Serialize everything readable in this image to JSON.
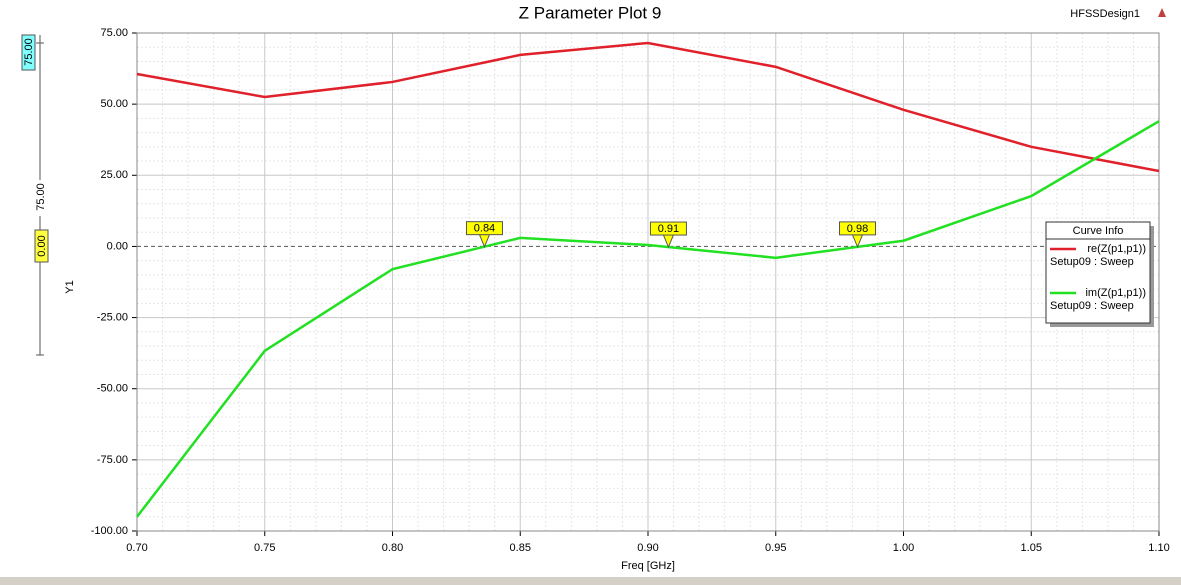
{
  "chart_data": {
    "type": "line",
    "title": "Z Parameter Plot 9",
    "design": "HFSSDesign1",
    "xlabel": "Freq [GHz]",
    "ylabel": "Y1",
    "x": [
      0.7,
      0.75,
      0.8,
      0.85,
      0.9,
      0.95,
      1.0,
      1.05,
      1.1
    ],
    "series": [
      {
        "name": "re(Z(p1,p1))",
        "solution": "Setup09 : Sweep",
        "color": "#e0202a",
        "values": [
          60.6,
          52.5,
          57.8,
          67.3,
          71.5,
          63.1,
          48,
          35,
          26.5
        ]
      },
      {
        "name": "im(Z(p1,p1))",
        "solution": "Setup09 : Sweep",
        "color": "#22e022",
        "values": [
          -95,
          -36.7,
          -8,
          3,
          0.5,
          -4,
          2,
          17.7,
          44
        ]
      }
    ],
    "xlim": [
      0.7,
      1.1
    ],
    "ylim": [
      -100,
      75
    ],
    "xticks": [
      {
        "value": 0.7,
        "label": "0.70"
      },
      0.75,
      {
        "value": 0.8,
        "label": "0.80"
      },
      0.85,
      {
        "value": 0.9,
        "label": "0.90"
      },
      0.95,
      {
        "value": 1.0,
        "label": "1.00"
      },
      1.05,
      {
        "value": 1.1,
        "label": "1.10"
      }
    ],
    "yticks": [
      {
        "value": 75,
        "label": "75.00"
      },
      {
        "value": 50,
        "label": "50.00"
      },
      {
        "value": 25,
        "label": "25.00"
      },
      {
        "value": 0,
        "label": "0.00"
      },
      {
        "value": -25,
        "label": "-25.00"
      },
      {
        "value": -50,
        "label": "-50.00"
      },
      {
        "value": -75,
        "label": "-75.00"
      },
      {
        "value": -100,
        "label": "-100.00"
      }
    ],
    "grid": true,
    "minor_grid": true,
    "legend_title": "Curve Info",
    "legend": "right",
    "markers": [
      {
        "x": 0.836,
        "label": "0.84"
      },
      {
        "x": 0.908,
        "label": "0.91"
      },
      {
        "x": 0.982,
        "label": "0.98"
      }
    ],
    "cursor": {
      "top": "75.00",
      "span": "75.00",
      "reference": "0.00"
    }
  }
}
